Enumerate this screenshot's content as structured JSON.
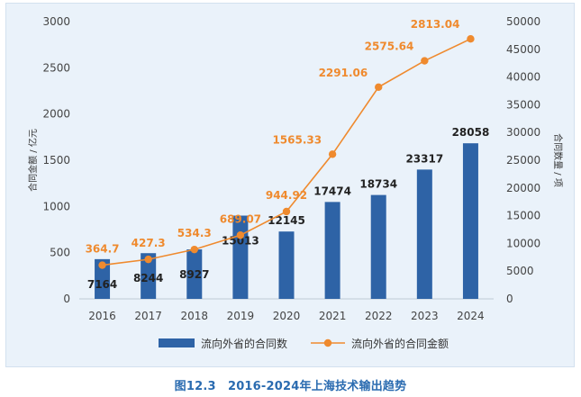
{
  "chart_data": {
    "type": "bar+line",
    "categories": [
      "2016",
      "2017",
      "2018",
      "2019",
      "2020",
      "2021",
      "2022",
      "2023",
      "2024"
    ],
    "series": [
      {
        "name": "流向外省的合同数",
        "type": "bar",
        "axis": "right",
        "color": "#2e63a6",
        "values": [
          7164,
          8244,
          8927,
          15013,
          12145,
          17474,
          18734,
          23317,
          28058
        ],
        "labels": [
          "7164",
          "8244",
          "8927",
          "15013",
          "12145",
          "17474",
          "18734",
          "23317",
          "28058"
        ]
      },
      {
        "name": "流向外省的合同金额",
        "type": "line",
        "axis": "left",
        "color": "#ef8a2e",
        "values": [
          364.7,
          427.3,
          534.3,
          689.07,
          944.92,
          1565.33,
          2291.06,
          2575.64,
          2813.04
        ],
        "labels": [
          "364.7",
          "427.3",
          "534.3",
          "689.07",
          "944.92",
          "1565.33",
          "2291.06",
          "2575.64",
          "2813.04"
        ]
      }
    ],
    "left_axis": {
      "title": "合同金额 / 亿元",
      "ylim": [
        0,
        3000
      ],
      "ticks": [
        "0",
        "500",
        "1000",
        "1500",
        "2000",
        "2500",
        "3000"
      ]
    },
    "right_axis": {
      "title": "合同数量 / 项",
      "ylim": [
        0,
        50000
      ],
      "ticks": [
        "0",
        "5000",
        "10000",
        "15000",
        "20000",
        "25000",
        "30000",
        "35000",
        "40000",
        "45000",
        "50000"
      ]
    },
    "legend": [
      "流向外省的合同数",
      "流向外省的合同金额"
    ],
    "legend_position": "bottom",
    "title": "图12.3　2016-2024年上海技术输出趋势"
  }
}
